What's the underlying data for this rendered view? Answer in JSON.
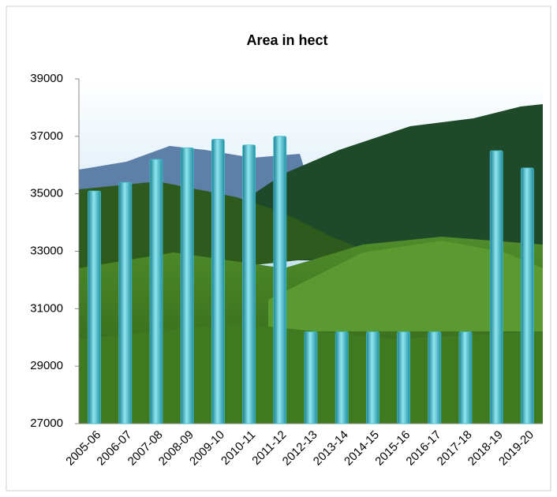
{
  "chart_data": {
    "type": "bar",
    "title": "Area in hect",
    "categories": [
      "2005-06",
      "2006-07",
      "2007-08",
      "2008-09",
      "2009-10",
      "2010-11",
      "2011-12",
      "2012-13",
      "2013-14",
      "2014-15",
      "2015-16",
      "2016-17",
      "2017-18",
      "2018-19",
      "2019-20"
    ],
    "values": [
      35100,
      35400,
      36200,
      36600,
      36900,
      36700,
      37000,
      30200,
      30200,
      30200,
      30200,
      30200,
      30200,
      36500,
      35900
    ],
    "color": "#3fbccc",
    "ylim": [
      27000,
      39000
    ],
    "yticks": [
      27000,
      29000,
      31000,
      33000,
      35000,
      37000,
      39000
    ],
    "grid": false
  }
}
